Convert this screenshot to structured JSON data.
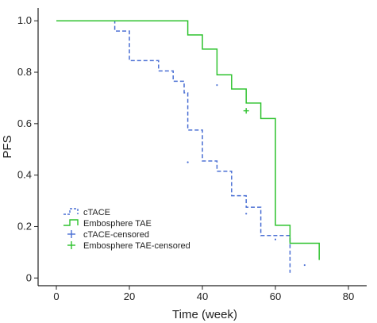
{
  "chart_data": {
    "type": "line",
    "subtype": "kaplan-meier-step",
    "xlabel": "Time (week)",
    "ylabel": "PFS",
    "xlim": [
      -5,
      85
    ],
    "ylim": [
      -0.03,
      1.05
    ],
    "xticks": [
      0,
      20,
      40,
      60,
      80
    ],
    "yticks": [
      0,
      0.2,
      0.4,
      0.6,
      0.8,
      1.0
    ],
    "xtick_labels": [
      "0",
      "20",
      "40",
      "60",
      "80"
    ],
    "ytick_labels": [
      "0",
      "0.2",
      "0.4",
      "0.6",
      "0.8",
      "1.0"
    ],
    "grid": false,
    "legend_position": "bottom-left",
    "series": [
      {
        "name": "cTACE",
        "color": "#4a6fd4",
        "style": "dashed",
        "steps": [
          [
            0,
            1.0
          ],
          [
            16,
            0.96
          ],
          [
            20,
            0.845
          ],
          [
            28,
            0.805
          ],
          [
            32,
            0.765
          ],
          [
            35,
            0.72
          ],
          [
            36,
            0.575
          ],
          [
            40,
            0.455
          ],
          [
            44,
            0.415
          ],
          [
            48,
            0.32
          ],
          [
            52,
            0.275
          ],
          [
            56,
            0.165
          ],
          [
            64,
            0.02
          ]
        ],
        "censored": [
          [
            36,
            0.45
          ],
          [
            44,
            0.75
          ],
          [
            52,
            0.25
          ],
          [
            60,
            0.15
          ],
          [
            68,
            0.05
          ]
        ]
      },
      {
        "name": "Embosphere TAE",
        "color": "#2ec22e",
        "style": "solid",
        "steps": [
          [
            0,
            1.0
          ],
          [
            36,
            0.945
          ],
          [
            40,
            0.89
          ],
          [
            44,
            0.79
          ],
          [
            48,
            0.735
          ],
          [
            52,
            0.68
          ],
          [
            56,
            0.62
          ],
          [
            60,
            0.205
          ],
          [
            64,
            0.135
          ],
          [
            72,
            0.07
          ]
        ],
        "censored": [
          [
            52,
            0.65
          ]
        ]
      }
    ],
    "legend": [
      {
        "label": "cTACE",
        "color": "#4a6fd4",
        "style": "dashed-step"
      },
      {
        "label": "Embosphere TAE",
        "color": "#2ec22e",
        "style": "solid-step"
      },
      {
        "label": "cTACE-censored",
        "color": "#4a6fd4",
        "style": "cross"
      },
      {
        "label": "Embosphere TAE-censored",
        "color": "#2ec22e",
        "style": "cross"
      }
    ]
  }
}
